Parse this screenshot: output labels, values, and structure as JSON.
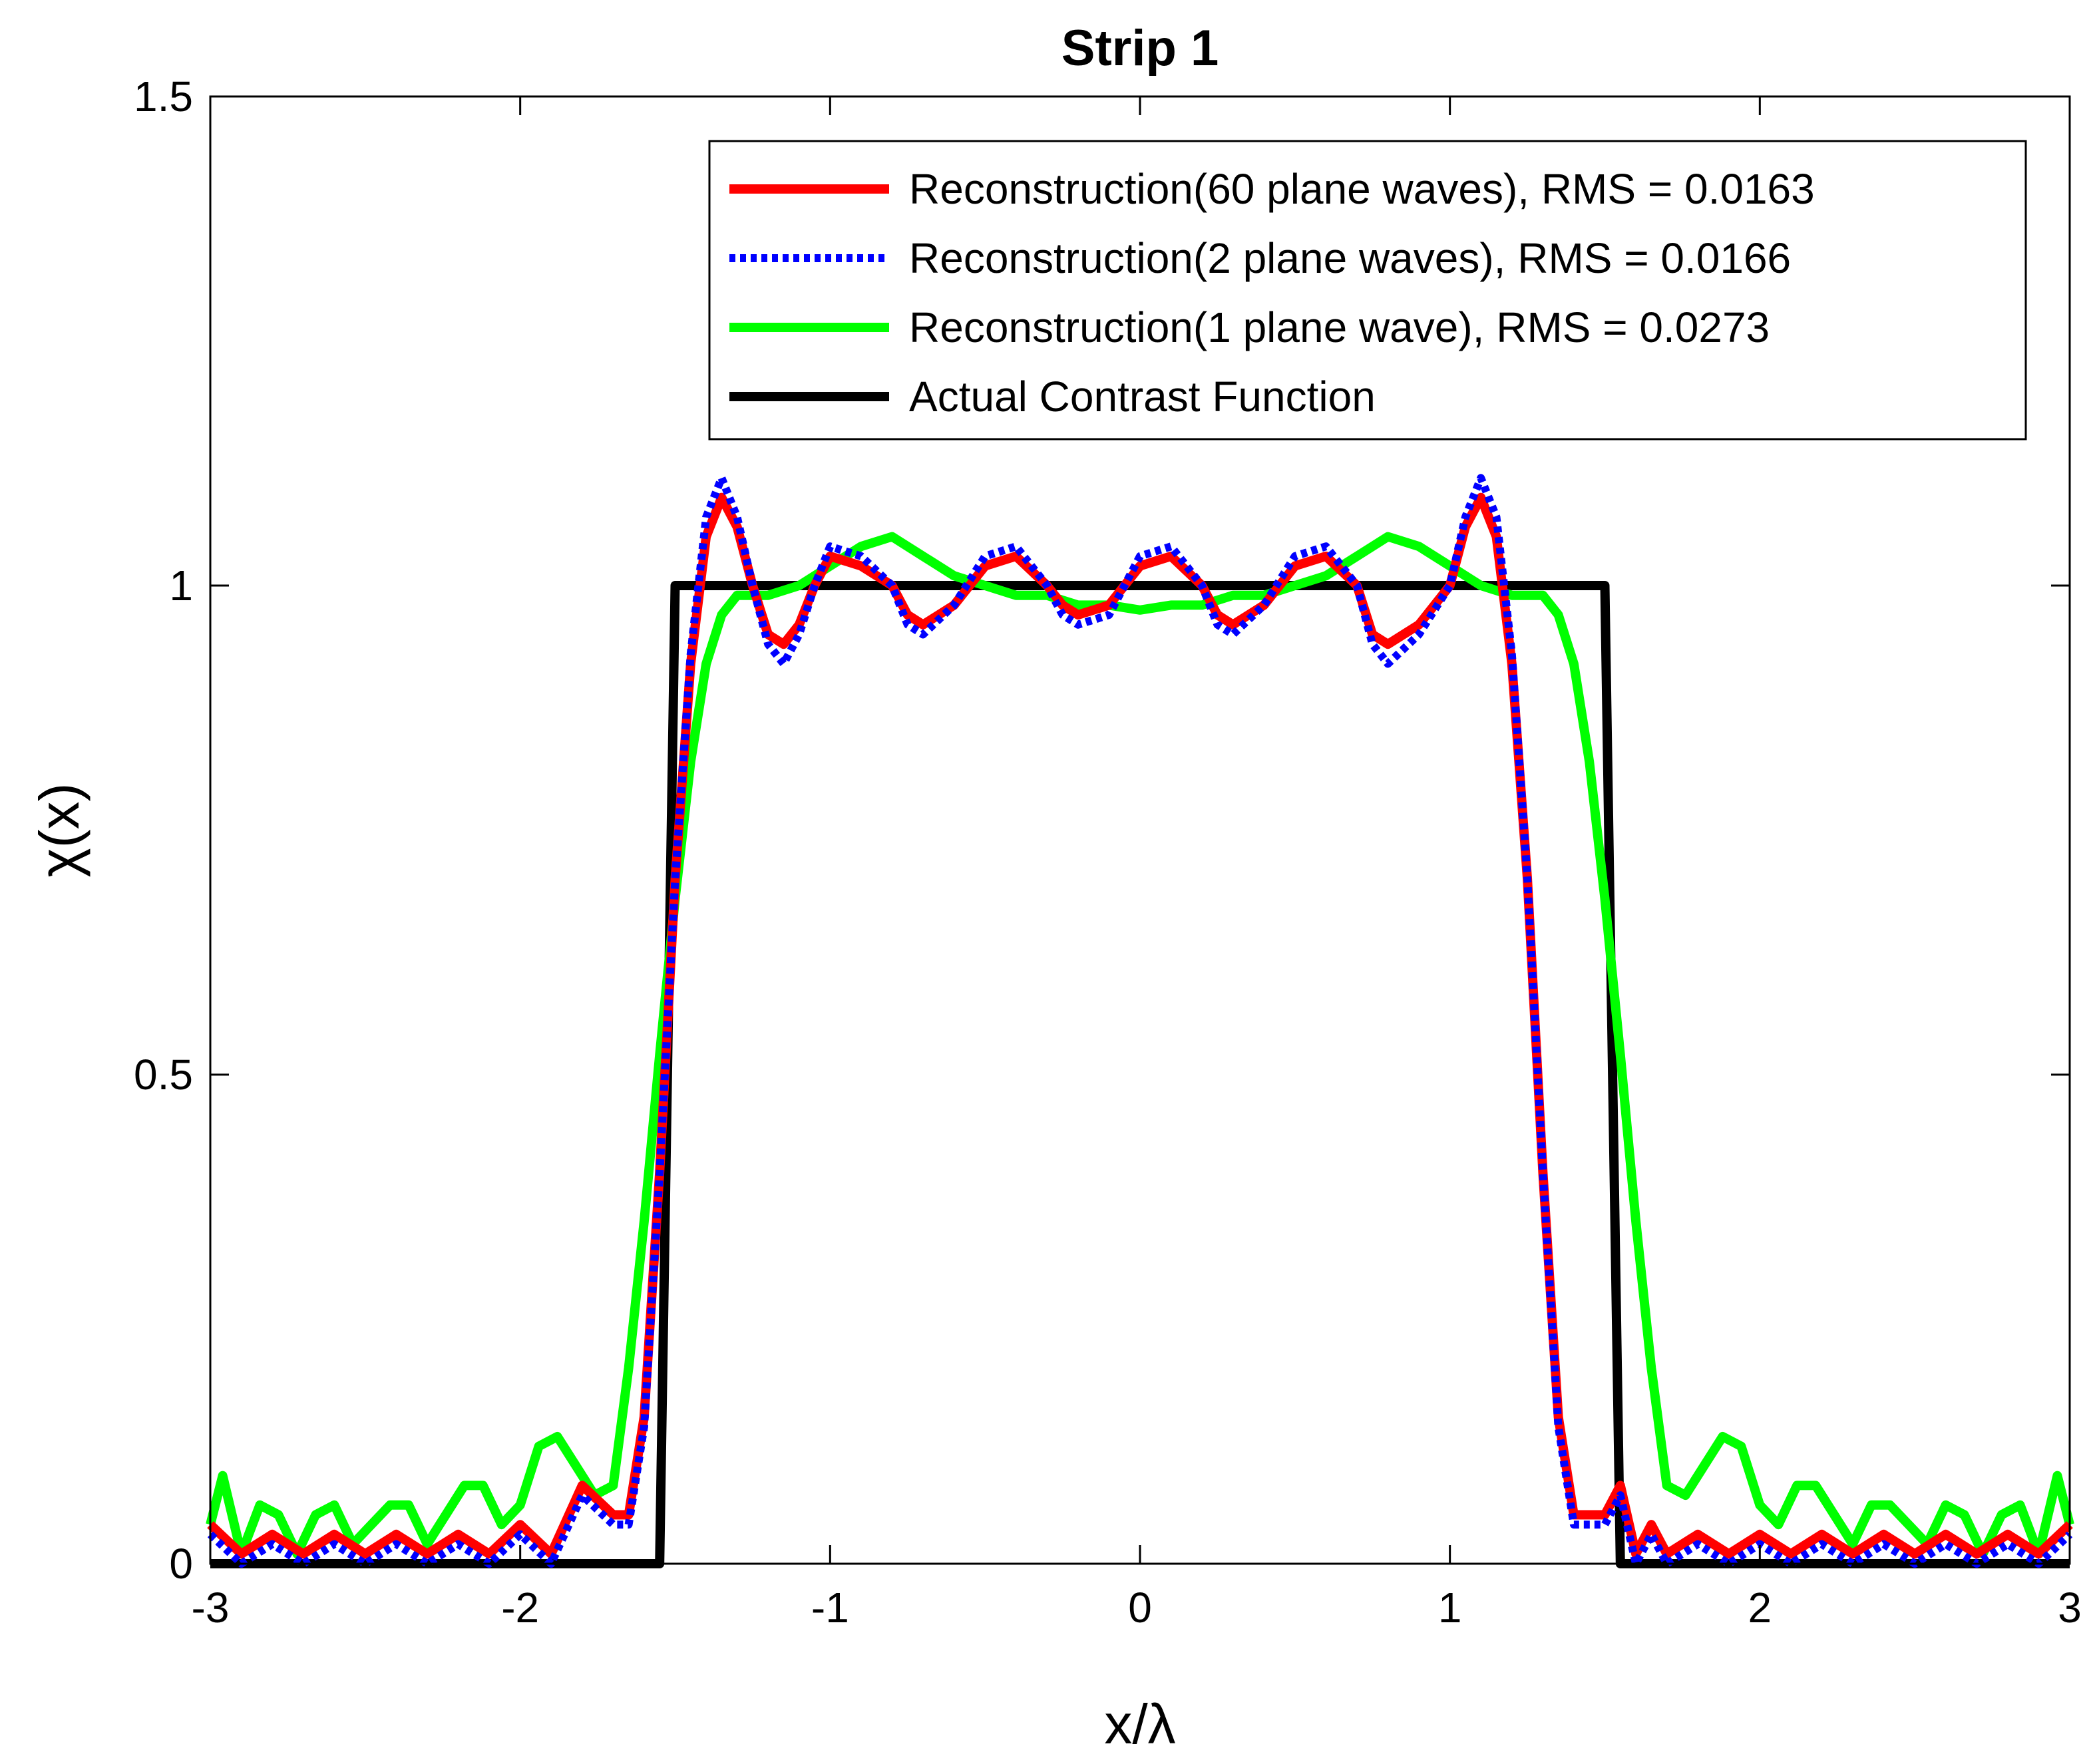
{
  "chart_data": {
    "type": "line",
    "title": "Strip 1",
    "xlabel": "x/λ",
    "ylabel": "χ(x)",
    "xlim": [
      -3,
      3
    ],
    "ylim": [
      0,
      1.5
    ],
    "xticks": [
      -3,
      -2,
      -1,
      0,
      1,
      2,
      3
    ],
    "xtick_labels": [
      "-3",
      "-2",
      "-1",
      "0",
      "1",
      "2",
      "3"
    ],
    "yticks": [
      0,
      0.5,
      1,
      1.5
    ],
    "ytick_labels": [
      "0",
      "0.5",
      "1",
      "1.5"
    ],
    "grid": false,
    "legend_position": "top-right",
    "series": [
      {
        "name": "Reconstruction(60 plane waves), RMS = 0.0163",
        "color": "#ff0000",
        "style": "solid",
        "x": [
          -3.0,
          -2.9,
          -2.8,
          -2.7,
          -2.6,
          -2.5,
          -2.4,
          -2.3,
          -2.2,
          -2.1,
          -2.0,
          -1.9,
          -1.8,
          -1.7,
          -1.65,
          -1.6,
          -1.55,
          -1.5,
          -1.45,
          -1.4,
          -1.35,
          -1.3,
          -1.25,
          -1.2,
          -1.15,
          -1.1,
          -1.05,
          -1.0,
          -0.9,
          -0.8,
          -0.75,
          -0.7,
          -0.6,
          -0.5,
          -0.4,
          -0.3,
          -0.25,
          -0.2,
          -0.1,
          0.0,
          0.1,
          0.2,
          0.25,
          0.3,
          0.4,
          0.5,
          0.6,
          0.7,
          0.75,
          0.8,
          0.9,
          1.0,
          1.05,
          1.1,
          1.15,
          1.2,
          1.25,
          1.3,
          1.35,
          1.4,
          1.45,
          1.5,
          1.55,
          1.6,
          1.65,
          1.7,
          1.8,
          1.9,
          2.0,
          2.1,
          2.2,
          2.3,
          2.4,
          2.5,
          2.6,
          2.7,
          2.8,
          2.9,
          3.0
        ],
        "y": [
          0.04,
          0.01,
          0.03,
          0.01,
          0.03,
          0.01,
          0.03,
          0.01,
          0.03,
          0.01,
          0.04,
          0.01,
          0.08,
          0.05,
          0.05,
          0.15,
          0.4,
          0.7,
          0.92,
          1.05,
          1.09,
          1.06,
          1.0,
          0.95,
          0.94,
          0.96,
          1.0,
          1.03,
          1.02,
          1.0,
          0.97,
          0.96,
          0.98,
          1.02,
          1.03,
          1.0,
          0.98,
          0.97,
          0.98,
          1.02,
          1.03,
          1.0,
          0.97,
          0.96,
          0.98,
          1.02,
          1.03,
          1.0,
          0.95,
          0.94,
          0.96,
          1.0,
          1.06,
          1.09,
          1.05,
          0.92,
          0.7,
          0.4,
          0.15,
          0.05,
          0.05,
          0.05,
          0.08,
          0.01,
          0.04,
          0.01,
          0.03,
          0.01,
          0.03,
          0.01,
          0.03,
          0.01,
          0.03,
          0.01,
          0.03,
          0.01,
          0.03,
          0.01,
          0.04
        ]
      },
      {
        "name": "Reconstruction(2 plane waves), RMS = 0.0166",
        "color": "#0000ff",
        "style": "dotted",
        "x": [
          -3.0,
          -2.9,
          -2.8,
          -2.7,
          -2.6,
          -2.5,
          -2.4,
          -2.3,
          -2.2,
          -2.1,
          -2.0,
          -1.9,
          -1.8,
          -1.7,
          -1.65,
          -1.6,
          -1.55,
          -1.5,
          -1.45,
          -1.4,
          -1.35,
          -1.3,
          -1.25,
          -1.2,
          -1.15,
          -1.1,
          -1.05,
          -1.0,
          -0.9,
          -0.8,
          -0.75,
          -0.7,
          -0.6,
          -0.5,
          -0.4,
          -0.3,
          -0.25,
          -0.2,
          -0.1,
          0.0,
          0.1,
          0.2,
          0.25,
          0.3,
          0.4,
          0.5,
          0.6,
          0.7,
          0.75,
          0.8,
          0.9,
          1.0,
          1.05,
          1.1,
          1.15,
          1.2,
          1.25,
          1.3,
          1.35,
          1.4,
          1.45,
          1.5,
          1.55,
          1.6,
          1.65,
          1.7,
          1.8,
          1.9,
          2.0,
          2.1,
          2.2,
          2.3,
          2.4,
          2.5,
          2.6,
          2.7,
          2.8,
          2.9,
          3.0
        ],
        "y": [
          0.03,
          0.0,
          0.02,
          0.0,
          0.02,
          0.0,
          0.02,
          0.0,
          0.02,
          0.0,
          0.03,
          0.0,
          0.07,
          0.04,
          0.04,
          0.14,
          0.4,
          0.7,
          0.93,
          1.07,
          1.11,
          1.07,
          1.0,
          0.94,
          0.92,
          0.95,
          1.0,
          1.04,
          1.03,
          1.0,
          0.96,
          0.95,
          0.98,
          1.03,
          1.04,
          1.0,
          0.97,
          0.96,
          0.97,
          1.03,
          1.04,
          1.0,
          0.96,
          0.95,
          0.98,
          1.03,
          1.04,
          1.0,
          0.94,
          0.92,
          0.95,
          1.0,
          1.07,
          1.11,
          1.07,
          0.93,
          0.7,
          0.4,
          0.14,
          0.04,
          0.04,
          0.04,
          0.07,
          0.0,
          0.03,
          0.0,
          0.02,
          0.0,
          0.02,
          0.0,
          0.02,
          0.0,
          0.02,
          0.0,
          0.02,
          0.0,
          0.02,
          0.0,
          0.03
        ]
      },
      {
        "name": "Reconstruction(1 plane wave), RMS = 0.0273",
        "color": "#00ff00",
        "style": "solid",
        "x": [
          -3.0,
          -2.96,
          -2.9,
          -2.84,
          -2.78,
          -2.72,
          -2.66,
          -2.6,
          -2.54,
          -2.48,
          -2.42,
          -2.36,
          -2.3,
          -2.24,
          -2.18,
          -2.12,
          -2.06,
          -2.0,
          -1.94,
          -1.88,
          -1.82,
          -1.76,
          -1.7,
          -1.65,
          -1.6,
          -1.55,
          -1.5,
          -1.45,
          -1.4,
          -1.35,
          -1.3,
          -1.25,
          -1.2,
          -1.1,
          -1.0,
          -0.9,
          -0.8,
          -0.7,
          -0.6,
          -0.5,
          -0.4,
          -0.3,
          -0.2,
          -0.1,
          0.0,
          0.1,
          0.2,
          0.3,
          0.4,
          0.5,
          0.6,
          0.7,
          0.8,
          0.9,
          1.0,
          1.1,
          1.2,
          1.25,
          1.3,
          1.35,
          1.4,
          1.45,
          1.5,
          1.55,
          1.6,
          1.65,
          1.7,
          1.76,
          1.82,
          1.88,
          1.94,
          2.0,
          2.06,
          2.12,
          2.18,
          2.24,
          2.3,
          2.36,
          2.42,
          2.48,
          2.54,
          2.6,
          2.66,
          2.72,
          2.78,
          2.84,
          2.9,
          2.96,
          3.0
        ],
        "y": [
          0.04,
          0.09,
          0.01,
          0.06,
          0.05,
          0.01,
          0.05,
          0.06,
          0.02,
          0.04,
          0.06,
          0.06,
          0.02,
          0.05,
          0.08,
          0.08,
          0.04,
          0.06,
          0.12,
          0.13,
          0.1,
          0.07,
          0.08,
          0.2,
          0.35,
          0.52,
          0.68,
          0.82,
          0.92,
          0.97,
          0.99,
          0.99,
          0.99,
          1.0,
          1.02,
          1.04,
          1.05,
          1.03,
          1.01,
          1.0,
          0.99,
          0.99,
          0.98,
          0.98,
          0.975,
          0.98,
          0.98,
          0.99,
          0.99,
          1.0,
          1.01,
          1.03,
          1.05,
          1.04,
          1.02,
          1.0,
          0.99,
          0.99,
          0.99,
          0.97,
          0.92,
          0.82,
          0.68,
          0.52,
          0.35,
          0.2,
          0.08,
          0.07,
          0.1,
          0.13,
          0.12,
          0.06,
          0.04,
          0.08,
          0.08,
          0.05,
          0.02,
          0.06,
          0.06,
          0.04,
          0.02,
          0.06,
          0.05,
          0.01,
          0.05,
          0.06,
          0.01,
          0.09,
          0.04
        ]
      },
      {
        "name": "Actual Contrast Function",
        "color": "#000000",
        "style": "solid",
        "x": [
          -3.0,
          -1.55,
          -1.5,
          1.5,
          1.55,
          3.0
        ],
        "y": [
          0,
          0,
          1,
          1,
          0,
          0
        ]
      }
    ]
  }
}
